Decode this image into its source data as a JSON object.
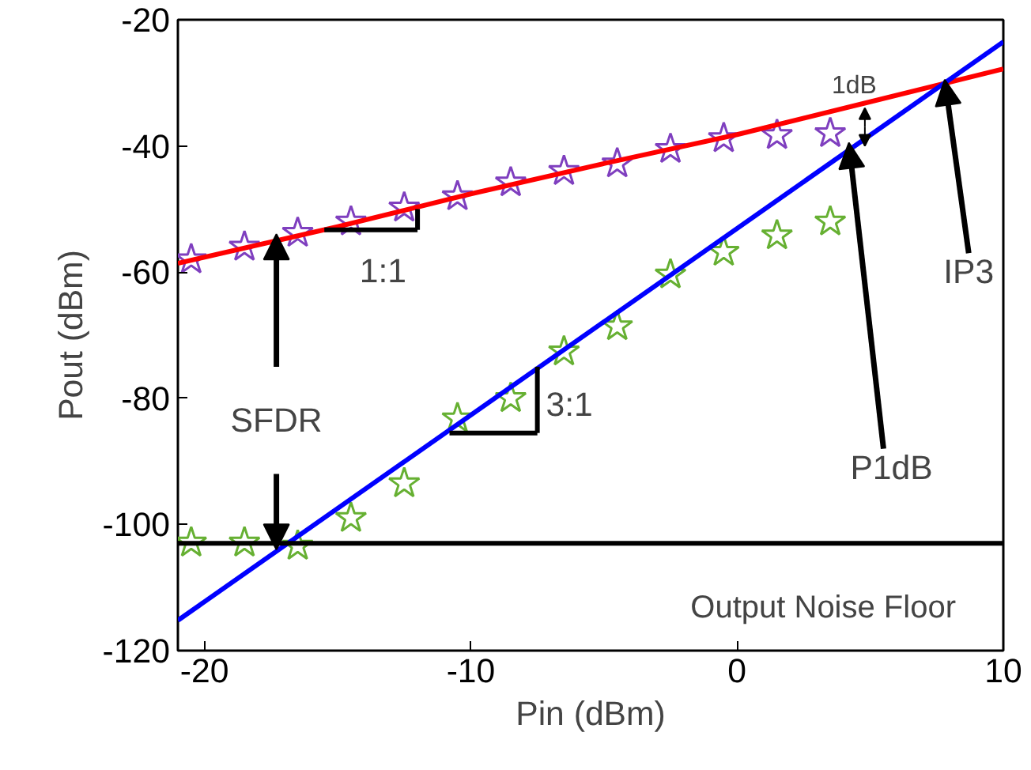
{
  "chart_data": {
    "type": "scatter",
    "xlabel": "Pin (dBm)",
    "ylabel": "Pout (dBm)",
    "xlim": [
      -21,
      10
    ],
    "ylim": [
      -120,
      -20
    ],
    "xticks": [
      -20,
      -10,
      0,
      10
    ],
    "yticks": [
      -120,
      -100,
      -80,
      -60,
      -40,
      -20
    ],
    "grid": false,
    "series": [
      {
        "marker": "star",
        "color": "#7f3fbf",
        "x": [
          -20.5,
          -18.5,
          -16.5,
          -14.5,
          -12.5,
          -10.5,
          -8.5,
          -6.5,
          -4.5,
          -2.5,
          -0.5,
          1.5,
          3.5
        ],
        "values": [
          -58,
          -56,
          -53.8,
          -52,
          -49.8,
          -48,
          -45.8,
          -44,
          -42.8,
          -40.5,
          -38.8,
          -38.3,
          -38
        ]
      },
      {
        "marker": "star",
        "color": "#66b032",
        "x": [
          -20.5,
          -18.5,
          -16.5,
          -14.5,
          -12.5,
          -10.5,
          -8.5,
          -6.5,
          -4.5,
          -2.5,
          -0.5,
          1.5,
          3.5
        ],
        "values": [
          -102.9,
          -102.9,
          -103.4,
          -99,
          -93.5,
          -83.2,
          -80,
          -72.6,
          -68.6,
          -60.4,
          -56.8,
          -54.2,
          -52
        ]
      },
      {
        "type": "line",
        "color": "#ff0000",
        "x": [
          -21,
          -15,
          -10,
          -5,
          0,
          5,
          10
        ],
        "values": [
          -58.6,
          -52.8,
          -47.6,
          -42.8,
          -38.2,
          -33,
          -27.8
        ]
      },
      {
        "type": "line",
        "color": "#0000ff",
        "x": [
          -21,
          10
        ],
        "values": [
          -115.2,
          -23.5
        ]
      }
    ],
    "ref_lines": [
      {
        "axis": "y",
        "value": -103,
        "label": "Output Noise Floor",
        "color": "#000000"
      }
    ],
    "annotations": [
      "1:1",
      {
        "text": "3:1",
        "x": -10.8,
        "y": -85.5
      },
      {
        "text": "SFDR",
        "x": -17.3,
        "y": -54
      },
      {
        "text": "P1dB",
        "x": 4.2,
        "y": -39.5
      },
      {
        "text": "IP3",
        "x": 7.8,
        "y": -29.5
      },
      {
        "text": "1dB",
        "x": 4.8,
        "y": -37
      }
    ]
  }
}
